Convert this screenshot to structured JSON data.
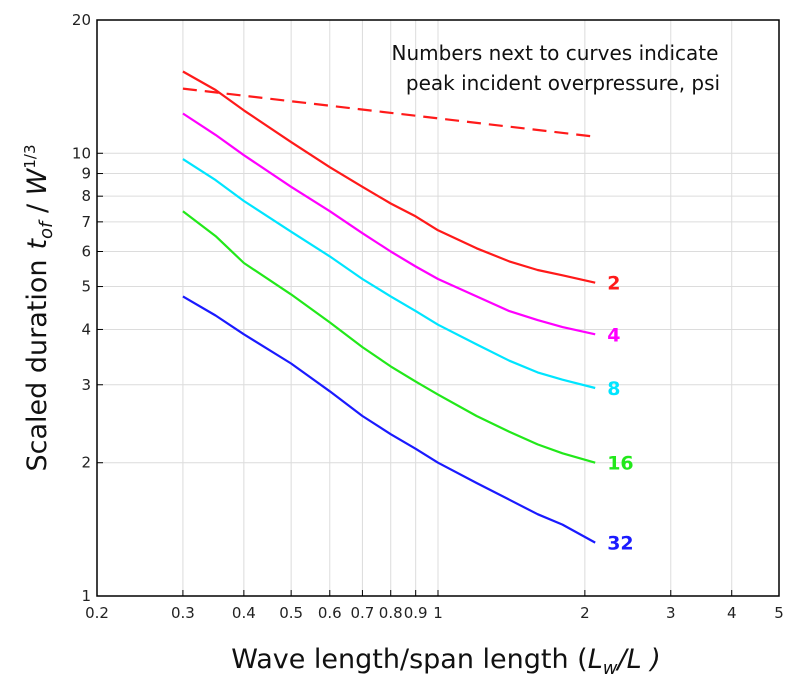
{
  "chart_data": {
    "type": "line",
    "xlabel": "Wave length/span length (",
    "xlabel_symbol": "L",
    "xlabel_sub": "w",
    "xlabel_tail": "/L )",
    "ylabel": "Scaled duration",
    "ylabel_symbol": "t",
    "ylabel_sub": "of",
    "ylabel_mid": " / ",
    "ylabel_w": "W",
    "ylabel_exp": "1/3",
    "note_lines": [
      "Numbers next to curves indicate",
      "peak incident overpressure, psi"
    ],
    "x_scale": "log",
    "y_scale": "log",
    "xlim": [
      0.2,
      5
    ],
    "ylim": [
      1,
      20
    ],
    "grid": true,
    "x_ticks": [
      {
        "v": 0.2,
        "label": "0.2"
      },
      {
        "v": 0.3,
        "label": "0.3"
      },
      {
        "v": 0.4,
        "label": "0.4"
      },
      {
        "v": 0.5,
        "label": "0.5"
      },
      {
        "v": 0.6,
        "label": "0.6"
      },
      {
        "v": 0.7,
        "label": "0.7"
      },
      {
        "v": 0.8,
        "label": "0.8"
      },
      {
        "v": 0.9,
        "label": "0.9"
      },
      {
        "v": 1,
        "label": "1"
      },
      {
        "v": 2,
        "label": "2"
      },
      {
        "v": 3,
        "label": "3"
      },
      {
        "v": 4,
        "label": "4"
      },
      {
        "v": 5,
        "label": "5"
      }
    ],
    "y_ticks": [
      {
        "v": 1,
        "label": "1"
      },
      {
        "v": 2,
        "label": "2"
      },
      {
        "v": 3,
        "label": "3"
      },
      {
        "v": 4,
        "label": "4"
      },
      {
        "v": 5,
        "label": "5"
      },
      {
        "v": 6,
        "label": "6"
      },
      {
        "v": 7,
        "label": "7"
      },
      {
        "v": 8,
        "label": "8"
      },
      {
        "v": 9,
        "label": "9"
      },
      {
        "v": 10,
        "label": "10"
      },
      {
        "v": 20,
        "label": "20"
      }
    ],
    "series": [
      {
        "label": "2",
        "color": "#ff1a1a",
        "dash": false,
        "x": [
          0.3,
          0.35,
          0.4,
          0.5,
          0.6,
          0.7,
          0.8,
          0.9,
          1.0,
          1.2,
          1.4,
          1.6,
          1.8,
          2.1
        ],
        "y": [
          15.3,
          13.9,
          12.5,
          10.6,
          9.3,
          8.4,
          7.7,
          7.2,
          6.7,
          6.1,
          5.7,
          5.45,
          5.3,
          5.1
        ]
      },
      {
        "label": "4",
        "color": "#ff00ff",
        "dash": false,
        "x": [
          0.3,
          0.35,
          0.4,
          0.5,
          0.6,
          0.7,
          0.8,
          0.9,
          1.0,
          1.2,
          1.4,
          1.6,
          1.8,
          2.1
        ],
        "y": [
          12.3,
          11.0,
          9.9,
          8.4,
          7.4,
          6.6,
          6.0,
          5.55,
          5.2,
          4.75,
          4.4,
          4.2,
          4.05,
          3.9
        ]
      },
      {
        "label": "8",
        "color": "#00e5ff",
        "dash": false,
        "x": [
          0.3,
          0.35,
          0.4,
          0.5,
          0.6,
          0.7,
          0.8,
          0.9,
          1.0,
          1.2,
          1.4,
          1.6,
          1.8,
          2.1
        ],
        "y": [
          9.7,
          8.7,
          7.8,
          6.65,
          5.85,
          5.2,
          4.75,
          4.4,
          4.1,
          3.7,
          3.4,
          3.2,
          3.08,
          2.95
        ]
      },
      {
        "label": "16",
        "color": "#22e81a",
        "dash": false,
        "x": [
          0.3,
          0.35,
          0.4,
          0.5,
          0.6,
          0.7,
          0.8,
          0.9,
          1.0,
          1.2,
          1.4,
          1.6,
          1.8,
          2.1
        ],
        "y": [
          7.4,
          6.5,
          5.65,
          4.8,
          4.15,
          3.65,
          3.3,
          3.05,
          2.85,
          2.55,
          2.35,
          2.2,
          2.1,
          2.0
        ]
      },
      {
        "label": "32",
        "color": "#1a1aff",
        "dash": false,
        "x": [
          0.3,
          0.35,
          0.4,
          0.5,
          0.6,
          0.7,
          0.8,
          0.9,
          1.0,
          1.2,
          1.4,
          1.6,
          1.8,
          2.1
        ],
        "y": [
          4.75,
          4.3,
          3.9,
          3.35,
          2.9,
          2.55,
          2.32,
          2.15,
          2.0,
          1.8,
          1.65,
          1.53,
          1.45,
          1.32
        ]
      },
      {
        "label": "",
        "color": "#ff1a1a",
        "dash": true,
        "x": [
          0.3,
          2.1
        ],
        "y": [
          14.0,
          10.9
        ]
      }
    ]
  }
}
